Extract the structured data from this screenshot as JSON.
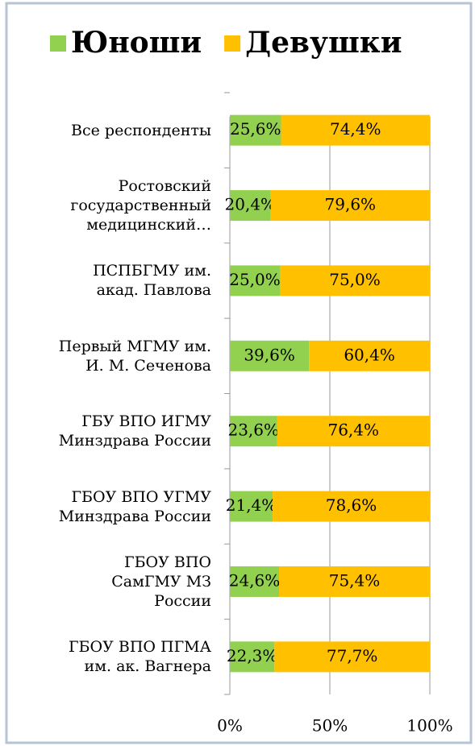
{
  "chart_data": {
    "type": "stacked_barh",
    "categories": [
      "Все респонденты",
      "Ростовский\nгосударственный\nмедицинский…",
      "ПСПБГМУ им.\nакад. Павлова",
      "Первый МГМУ им.\nИ. М. Сеченова",
      "ГБУ ВПО ИГМУ\nМинздрава России",
      "ГБОУ ВПО УГМУ\nМинздрава России",
      "ГБОУ ВПО\nСамГМУ МЗ\nРоссии",
      "ГБОУ ВПО ПГМА\nим. ак. Вагнера"
    ],
    "series": [
      {
        "name": "Юноши",
        "color": "#92d050",
        "values": [
          25.6,
          20.4,
          25.0,
          39.6,
          23.6,
          21.4,
          24.6,
          22.3
        ],
        "value_labels": [
          "25,6%",
          "20,4%",
          "25,0%",
          "39,6%",
          "23,6%",
          "21,4%",
          "24,6%",
          "22,3%"
        ]
      },
      {
        "name": "Девушки",
        "color": "#ffc000",
        "values": [
          74.4,
          79.6,
          75.0,
          60.4,
          76.4,
          78.6,
          75.4,
          77.7
        ],
        "value_labels": [
          "74,4%",
          "79,6%",
          "75,0%",
          "60,4%",
          "76,4%",
          "78,6%",
          "75,4%",
          "77,7%"
        ]
      }
    ],
    "xlim": [
      0,
      100
    ],
    "xticks": [
      {
        "value": 0,
        "label": "0%"
      },
      {
        "value": 50,
        "label": "50%"
      },
      {
        "value": 100,
        "label": "100%"
      }
    ],
    "grid": true,
    "legend": "top"
  }
}
